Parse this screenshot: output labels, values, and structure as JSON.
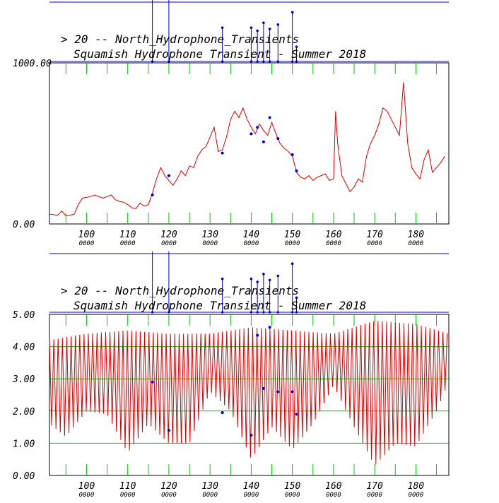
{
  "chart_data": [
    {
      "type": "line",
      "title": "> 20 -- North_Hydrophone_Transients",
      "subtitle": "Squamish Hydrophone Transient - Summer 2018",
      "xlabel": "",
      "ylabel": "",
      "xlim": [
        91,
        188
      ],
      "ylim": [
        0,
        1000
      ],
      "x_ticks": [
        100,
        110,
        120,
        130,
        140,
        150,
        160,
        170,
        180
      ],
      "x_tick_sublabel": "0000",
      "y_ticks": [
        {
          "value": 0,
          "label": "0.00"
        },
        {
          "value": 1000,
          "label": "1000.00"
        }
      ],
      "grid": false,
      "colors": {
        "line": "#dd0000",
        "markers": "#0000cc",
        "ticks": "#00cc00"
      },
      "series": [
        {
          "x": [
            91,
            93,
            94,
            95,
            96,
            97,
            98,
            99,
            100,
            101,
            102,
            104,
            106,
            107,
            108,
            109,
            110,
            111,
            112,
            113,
            114,
            115,
            116,
            117,
            118,
            119,
            120,
            121,
            122,
            123,
            124,
            125,
            126,
            127,
            128,
            129,
            130,
            131,
            132,
            133,
            134,
            135,
            136,
            137,
            138,
            139,
            140,
            141,
            142,
            143,
            144,
            145,
            146,
            147,
            148,
            149,
            150,
            151,
            152,
            153,
            154,
            155,
            156,
            157,
            158,
            159,
            160,
            160.5,
            161,
            162,
            163,
            164,
            165,
            166,
            167,
            168,
            169,
            170,
            171,
            172,
            173,
            174,
            175,
            176,
            177,
            178,
            179,
            180,
            181,
            182,
            183,
            184,
            185,
            186,
            187
          ],
          "y": [
            60,
            55,
            80,
            50,
            55,
            60,
            120,
            160,
            165,
            170,
            180,
            160,
            180,
            150,
            140,
            135,
            120,
            100,
            95,
            130,
            110,
            120,
            190,
            280,
            350,
            300,
            270,
            240,
            280,
            330,
            300,
            360,
            350,
            420,
            460,
            480,
            540,
            600,
            450,
            460,
            540,
            650,
            700,
            660,
            720,
            650,
            600,
            560,
            620,
            580,
            550,
            630,
            560,
            500,
            470,
            450,
            420,
            320,
            290,
            280,
            300,
            270,
            290,
            300,
            310,
            270,
            280,
            700,
            500,
            300,
            250,
            200,
            230,
            280,
            260,
            420,
            500,
            550,
            620,
            720,
            700,
            650,
            600,
            550,
            880,
            500,
            350,
            310,
            280,
            400,
            460,
            320,
            350,
            380,
            420
          ]
        }
      ],
      "markers": {
        "x": [
          116,
          120,
          133,
          140,
          141.5,
          143,
          144.5,
          146.5,
          150,
          151
        ],
        "y": [
          180,
          300,
          440,
          560,
          600,
          510,
          660,
          530,
          430,
          330
        ]
      }
    },
    {
      "type": "line",
      "title": "> 20 -- North_Hydrophone_Transients",
      "subtitle": "Squamish Hydrophone Transient - Summer 2018",
      "xlabel": "",
      "ylabel": "",
      "xlim": [
        91,
        188
      ],
      "ylim": [
        0,
        5
      ],
      "x_ticks": [
        100,
        110,
        120,
        130,
        140,
        150,
        160,
        170,
        180
      ],
      "x_tick_sublabel": "0000",
      "y_ticks": [
        {
          "value": 0,
          "label": "0.00"
        },
        {
          "value": 1,
          "label": "1.00"
        },
        {
          "value": 2,
          "label": "2.00"
        },
        {
          "value": 3,
          "label": "3.00"
        },
        {
          "value": 4,
          "label": "4.00"
        },
        {
          "value": 5,
          "label": "5.00"
        }
      ],
      "grid": true,
      "colors": {
        "line": "#dd0000",
        "markers": "#0000cc",
        "grid": "#00cc00"
      },
      "oscillation": {
        "period_x": 1.05,
        "upper_envelope": {
          "x": [
            91,
            100,
            110,
            120,
            130,
            140,
            150,
            160,
            170,
            180,
            188
          ],
          "y": [
            4.2,
            4.4,
            4.5,
            4.4,
            4.4,
            4.6,
            4.5,
            4.4,
            4.8,
            4.7,
            4.4
          ]
        },
        "lower_envelope": {
          "x": [
            91,
            95,
            100,
            105,
            110,
            115,
            120,
            125,
            130,
            135,
            140,
            145,
            150,
            155,
            160,
            165,
            170,
            175,
            180,
            185,
            188
          ],
          "y": [
            1.6,
            1.2,
            2.0,
            1.9,
            0.7,
            1.6,
            1.0,
            1.0,
            2.6,
            2.0,
            0.5,
            1.5,
            0.8,
            1.6,
            2.8,
            1.5,
            0.3,
            1.0,
            0.9,
            2.0,
            2.9
          ]
        }
      },
      "markers": {
        "x": [
          116,
          120,
          133,
          140,
          141.5,
          143,
          144.5,
          146.5,
          150,
          151
        ],
        "y": [
          2.9,
          1.4,
          1.95,
          1.25,
          4.35,
          2.7,
          4.6,
          2.6,
          2.6,
          1.9
        ]
      }
    }
  ],
  "events": {
    "x": [
      116,
      120,
      133,
      140,
      141.5,
      143,
      144.5,
      146.5,
      150,
      151
    ],
    "heights": [
      1.0,
      1.0,
      0.55,
      0.55,
      0.5,
      0.63,
      0.53,
      0.6,
      0.8,
      0.24
    ]
  }
}
